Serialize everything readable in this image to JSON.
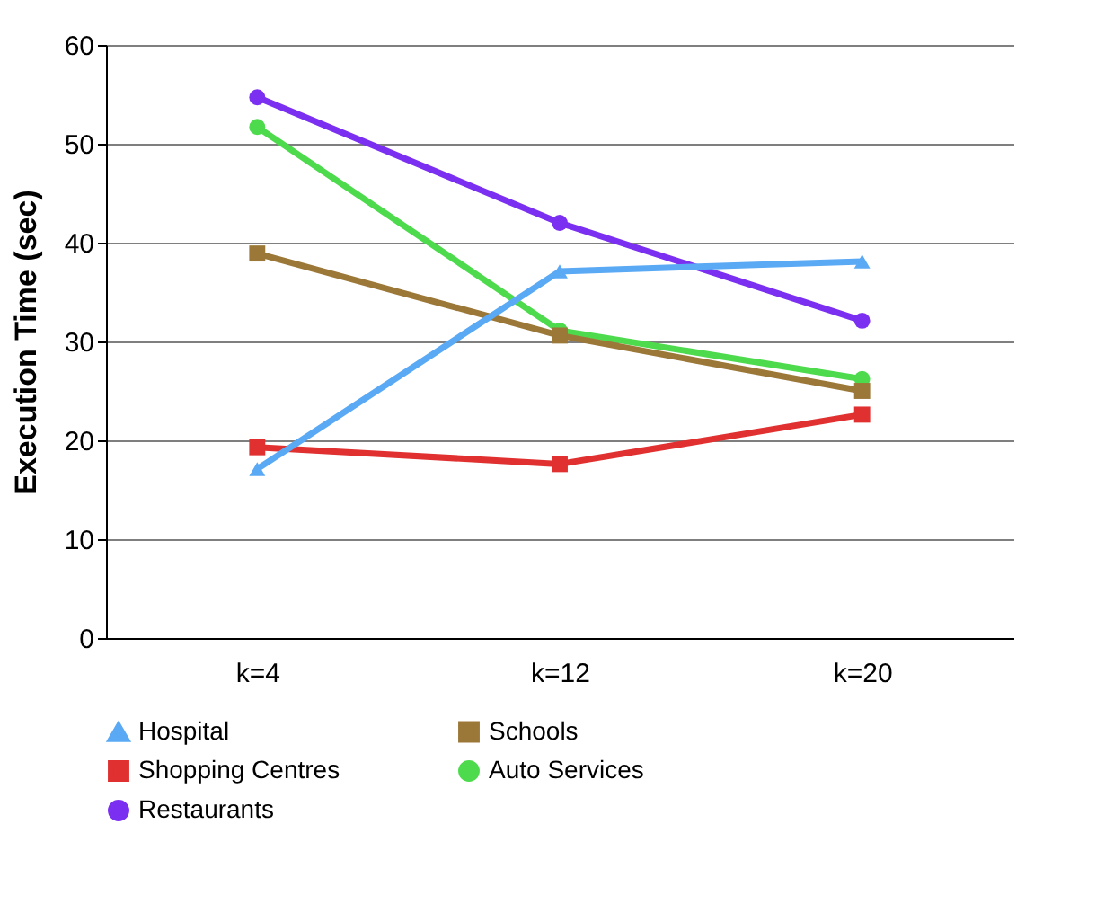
{
  "chart_data": {
    "type": "line",
    "ylabel": "Execution Time (sec)",
    "categories": [
      "k=4",
      "k=12",
      "k=20"
    ],
    "ylim": [
      0,
      60
    ],
    "yticks": [
      0,
      10,
      20,
      30,
      40,
      50,
      60
    ],
    "grid": "y",
    "legend": "bottom",
    "line_style": "solid",
    "series": [
      {
        "name": "Hospital",
        "color": "#5aa9f5",
        "marker": "triangle",
        "values": [
          17.1,
          37.1,
          38.1
        ]
      },
      {
        "name": "Schools",
        "color": "#9c7838",
        "marker": "square",
        "values": [
          38.9,
          30.6,
          25.0
        ]
      },
      {
        "name": "Shopping Centres",
        "color": "#e03030",
        "marker": "square",
        "values": [
          19.3,
          17.6,
          22.6
        ]
      },
      {
        "name": "Auto Services",
        "color": "#4ddb4d",
        "marker": "circle",
        "values": [
          51.7,
          31.1,
          26.2
        ]
      },
      {
        "name": "Restaurants",
        "color": "#7b2ff0",
        "marker": "circle",
        "values": [
          54.7,
          42.0,
          32.1
        ]
      }
    ]
  }
}
